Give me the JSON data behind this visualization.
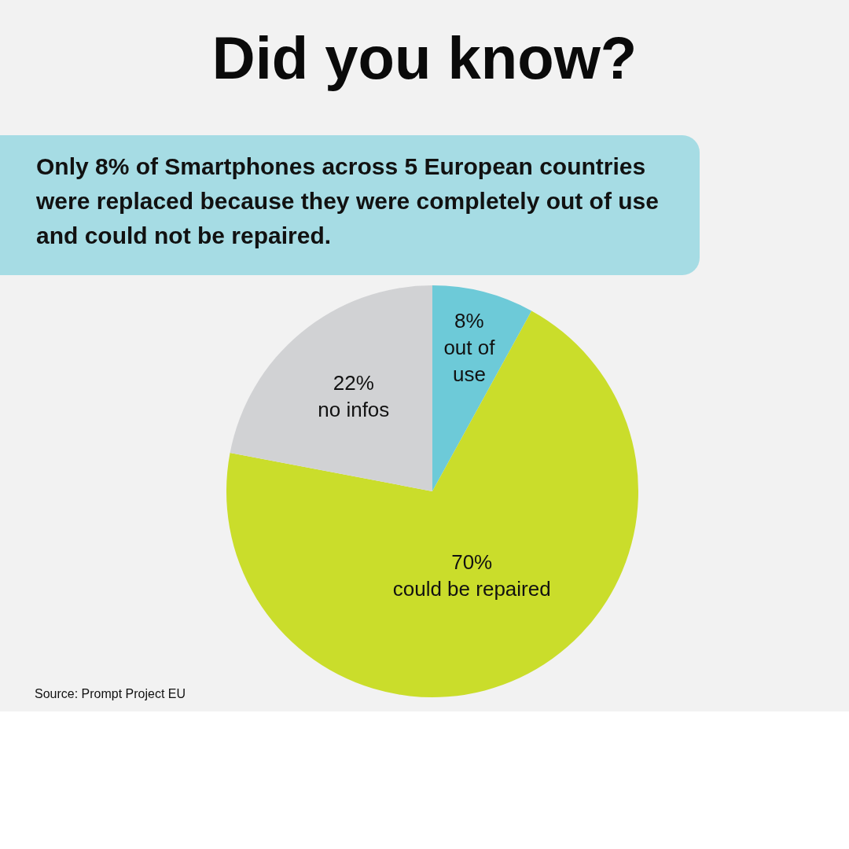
{
  "chart_data": {
    "type": "pie",
    "title": "Did you know?",
    "subtitle": "Only 8% of Smartphones across 5 European countries were replaced because they were completely out of use and could not be repaired.",
    "categories": [
      "out of use",
      "could be repaired",
      "no infos"
    ],
    "values": [
      8,
      70,
      22
    ],
    "value_labels": [
      "8%",
      "70%",
      "22%"
    ],
    "colors": [
      "#6dcad8",
      "#cadd2b",
      "#d1d2d4"
    ],
    "annotations": [
      "Source: Prompt Project EU"
    ]
  }
}
